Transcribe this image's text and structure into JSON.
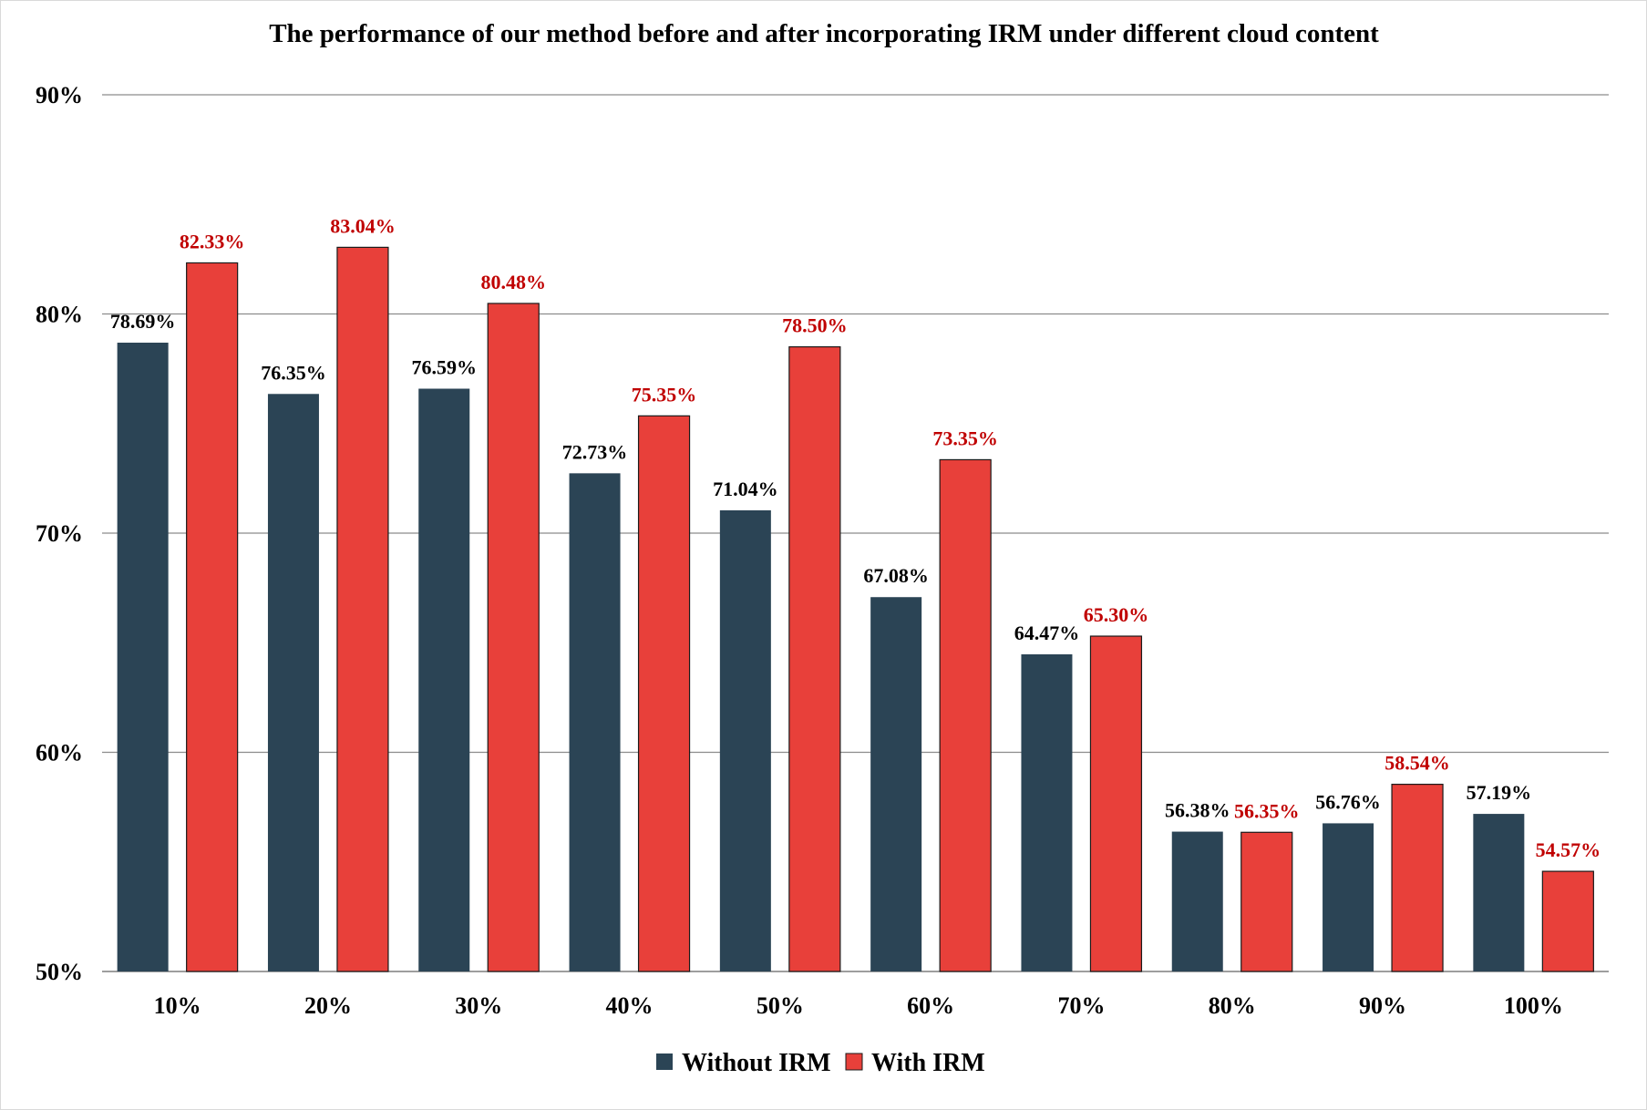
{
  "chart_data": {
    "type": "bar",
    "title": "The performance of our method before and after incorporating IRM under different cloud content",
    "xlabel": "",
    "ylabel": "",
    "categories": [
      "10%",
      "20%",
      "30%",
      "40%",
      "50%",
      "60%",
      "70%",
      "80%",
      "90%",
      "100%"
    ],
    "ylim": [
      50,
      90
    ],
    "yticks": [
      50,
      60,
      70,
      80,
      90
    ],
    "ytick_labels": [
      "50%",
      "60%",
      "70%",
      "80%",
      "90%"
    ],
    "grid": true,
    "legend_position": "bottom-center",
    "series": [
      {
        "name": "Without IRM",
        "color": "#2b4455",
        "label_color": "#000000",
        "values": [
          78.69,
          76.35,
          76.59,
          72.73,
          71.04,
          67.08,
          64.47,
          56.38,
          56.76,
          57.19
        ],
        "labels": [
          "78.69%",
          "76.35%",
          "76.59%",
          "72.73%",
          "71.04%",
          "67.08%",
          "64.47%",
          "56.38%",
          "56.76%",
          "57.19%"
        ]
      },
      {
        "name": "With IRM",
        "color": "#e8403a",
        "label_color": "#c00000",
        "values": [
          82.33,
          83.04,
          80.48,
          75.35,
          78.5,
          73.35,
          65.3,
          56.35,
          58.54,
          54.57
        ],
        "labels": [
          "82.33%",
          "83.04%",
          "80.48%",
          "75.35%",
          "78.50%",
          "73.35%",
          "65.30%",
          "56.35%",
          "58.54%",
          "54.57%"
        ]
      }
    ]
  }
}
